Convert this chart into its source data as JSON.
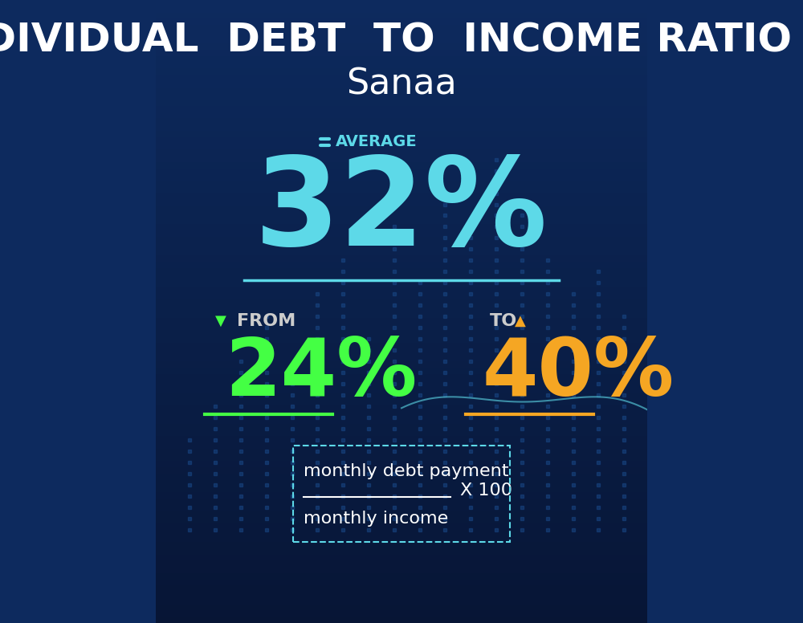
{
  "bg_color_top": "#0d2a5e",
  "bg_color_bottom": "#071535",
  "title_line1": "INDIVIDUAL  DEBT  TO  INCOME RATIO  IN",
  "title_line2": "Sanaa",
  "title_color": "#ffffff",
  "title_fontsize": 36,
  "subtitle_fontsize": 32,
  "average_label": "AVERAGE",
  "average_value": "32%",
  "average_color": "#5dd9e8",
  "average_fontsize": 110,
  "average_label_fontsize": 14,
  "from_label": "FROM",
  "from_value": "24%",
  "from_color": "#44ff44",
  "from_fontsize": 72,
  "from_label_fontsize": 16,
  "to_label": "TO",
  "to_value": "40%",
  "to_color": "#f5a623",
  "to_fontsize": 72,
  "to_label_fontsize": 16,
  "formula_top": "monthly debt payment",
  "formula_bottom": "monthly income",
  "formula_multiplier": "X 100",
  "formula_color": "#ffffff",
  "formula_fontsize": 16,
  "line_color": "#5dd9e8",
  "from_underline_color": "#44ff44",
  "to_underline_color": "#f5a623",
  "dashed_border_color": "#5dd9e8",
  "eq_symbol_color": "#5dd9e8",
  "label_color": "#cccccc",
  "bar_dot_color": "#1a4a8a",
  "line_chart_color": "#5dd9e8"
}
